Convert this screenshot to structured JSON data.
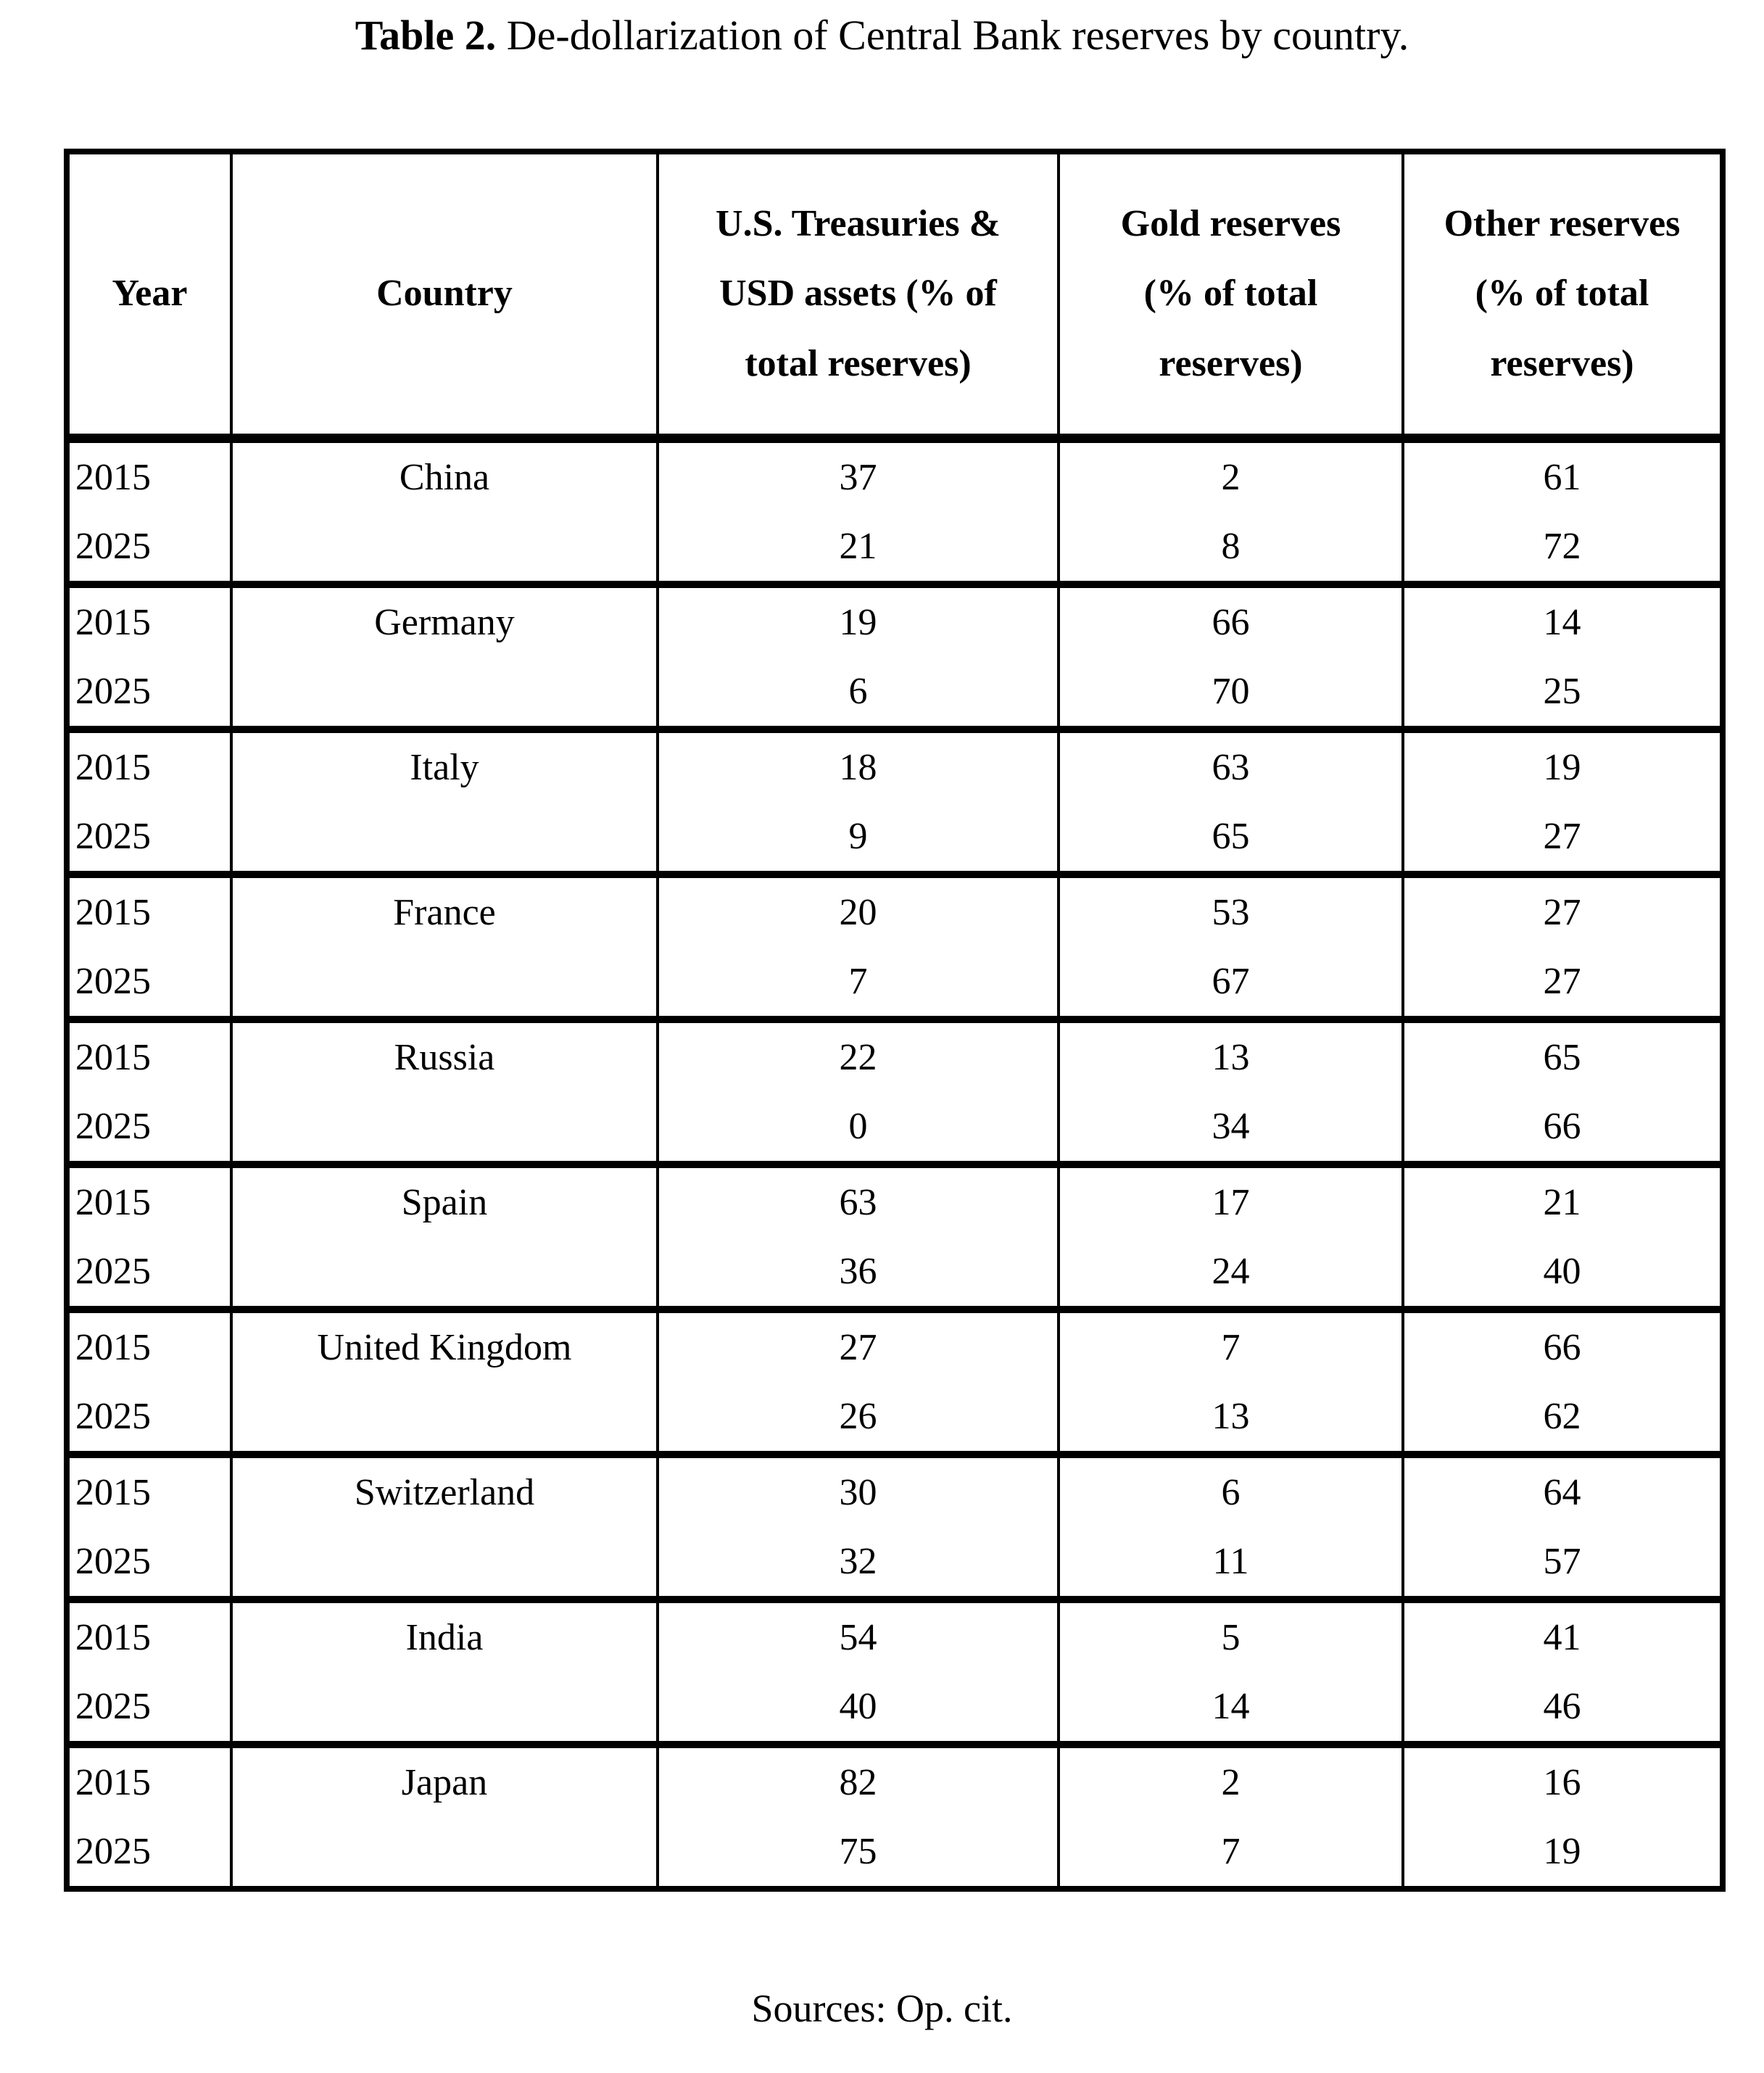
{
  "title": {
    "label": "Table 2.",
    "text": " De-dollarization of Central Bank reserves by country."
  },
  "table": {
    "headers": [
      "Year",
      "Country",
      "U.S. Treasuries & USD assets (% of total reserves)",
      "Gold reserves (% of total reserves)",
      "Other reserves (% of total reserves)"
    ],
    "groups": [
      {
        "country": "China",
        "rows": [
          {
            "year": "2015",
            "usd": "37",
            "gold": "2",
            "other": "61"
          },
          {
            "year": "2025",
            "usd": "21",
            "gold": "8",
            "other": "72"
          }
        ]
      },
      {
        "country": "Germany",
        "rows": [
          {
            "year": "2015",
            "usd": "19",
            "gold": "66",
            "other": "14"
          },
          {
            "year": "2025",
            "usd": "6",
            "gold": "70",
            "other": "25"
          }
        ]
      },
      {
        "country": "Italy",
        "rows": [
          {
            "year": "2015",
            "usd": "18",
            "gold": "63",
            "other": "19"
          },
          {
            "year": "2025",
            "usd": "9",
            "gold": "65",
            "other": "27"
          }
        ]
      },
      {
        "country": "France",
        "rows": [
          {
            "year": "2015",
            "usd": "20",
            "gold": "53",
            "other": "27"
          },
          {
            "year": "2025",
            "usd": "7",
            "gold": "67",
            "other": "27"
          }
        ]
      },
      {
        "country": "Russia",
        "rows": [
          {
            "year": "2015",
            "usd": "22",
            "gold": "13",
            "other": "65"
          },
          {
            "year": "2025",
            "usd": "0",
            "gold": "34",
            "other": "66"
          }
        ]
      },
      {
        "country": "Spain",
        "rows": [
          {
            "year": "2015",
            "usd": "63",
            "gold": "17",
            "other": "21"
          },
          {
            "year": "2025",
            "usd": "36",
            "gold": "24",
            "other": "40"
          }
        ]
      },
      {
        "country": "United Kingdom",
        "rows": [
          {
            "year": "2015",
            "usd": "27",
            "gold": "7",
            "other": "66"
          },
          {
            "year": "2025",
            "usd": "26",
            "gold": "13",
            "other": "62"
          }
        ]
      },
      {
        "country": "Switzerland",
        "rows": [
          {
            "year": "2015",
            "usd": "30",
            "gold": "6",
            "other": "64"
          },
          {
            "year": "2025",
            "usd": "32",
            "gold": "11",
            "other": "57"
          }
        ]
      },
      {
        "country": "India",
        "rows": [
          {
            "year": "2015",
            "usd": "54",
            "gold": "5",
            "other": "41"
          },
          {
            "year": "2025",
            "usd": "40",
            "gold": "14",
            "other": "46"
          }
        ]
      },
      {
        "country": "Japan",
        "rows": [
          {
            "year": "2015",
            "usd": "82",
            "gold": "2",
            "other": "16"
          },
          {
            "year": "2025",
            "usd": "75",
            "gold": "7",
            "other": "19"
          }
        ]
      }
    ]
  },
  "footer": {
    "text": "Sources: Op. cit."
  },
  "chart_data": {
    "type": "table",
    "title": "Table 2. De-dollarization of Central Bank reserves by country.",
    "columns": [
      "Year",
      "Country",
      "U.S. Treasuries & USD assets (% of total reserves)",
      "Gold reserves (% of total reserves)",
      "Other reserves (% of total reserves)"
    ],
    "rows": [
      [
        2015,
        "China",
        37,
        2,
        61
      ],
      [
        2025,
        "China",
        21,
        8,
        72
      ],
      [
        2015,
        "Germany",
        19,
        66,
        14
      ],
      [
        2025,
        "Germany",
        6,
        70,
        25
      ],
      [
        2015,
        "Italy",
        18,
        63,
        19
      ],
      [
        2025,
        "Italy",
        9,
        65,
        27
      ],
      [
        2015,
        "France",
        20,
        53,
        27
      ],
      [
        2025,
        "France",
        7,
        67,
        27
      ],
      [
        2015,
        "Russia",
        22,
        13,
        65
      ],
      [
        2025,
        "Russia",
        0,
        34,
        66
      ],
      [
        2015,
        "Spain",
        63,
        17,
        21
      ],
      [
        2025,
        "Spain",
        36,
        24,
        40
      ],
      [
        2015,
        "United Kingdom",
        27,
        7,
        66
      ],
      [
        2025,
        "United Kingdom",
        26,
        13,
        62
      ],
      [
        2015,
        "Switzerland",
        30,
        6,
        64
      ],
      [
        2025,
        "Switzerland",
        32,
        11,
        57
      ],
      [
        2015,
        "India",
        54,
        5,
        41
      ],
      [
        2025,
        "India",
        40,
        14,
        46
      ],
      [
        2015,
        "Japan",
        82,
        2,
        16
      ],
      [
        2025,
        "Japan",
        75,
        7,
        19
      ]
    ],
    "note": "Sources: Op. cit."
  }
}
